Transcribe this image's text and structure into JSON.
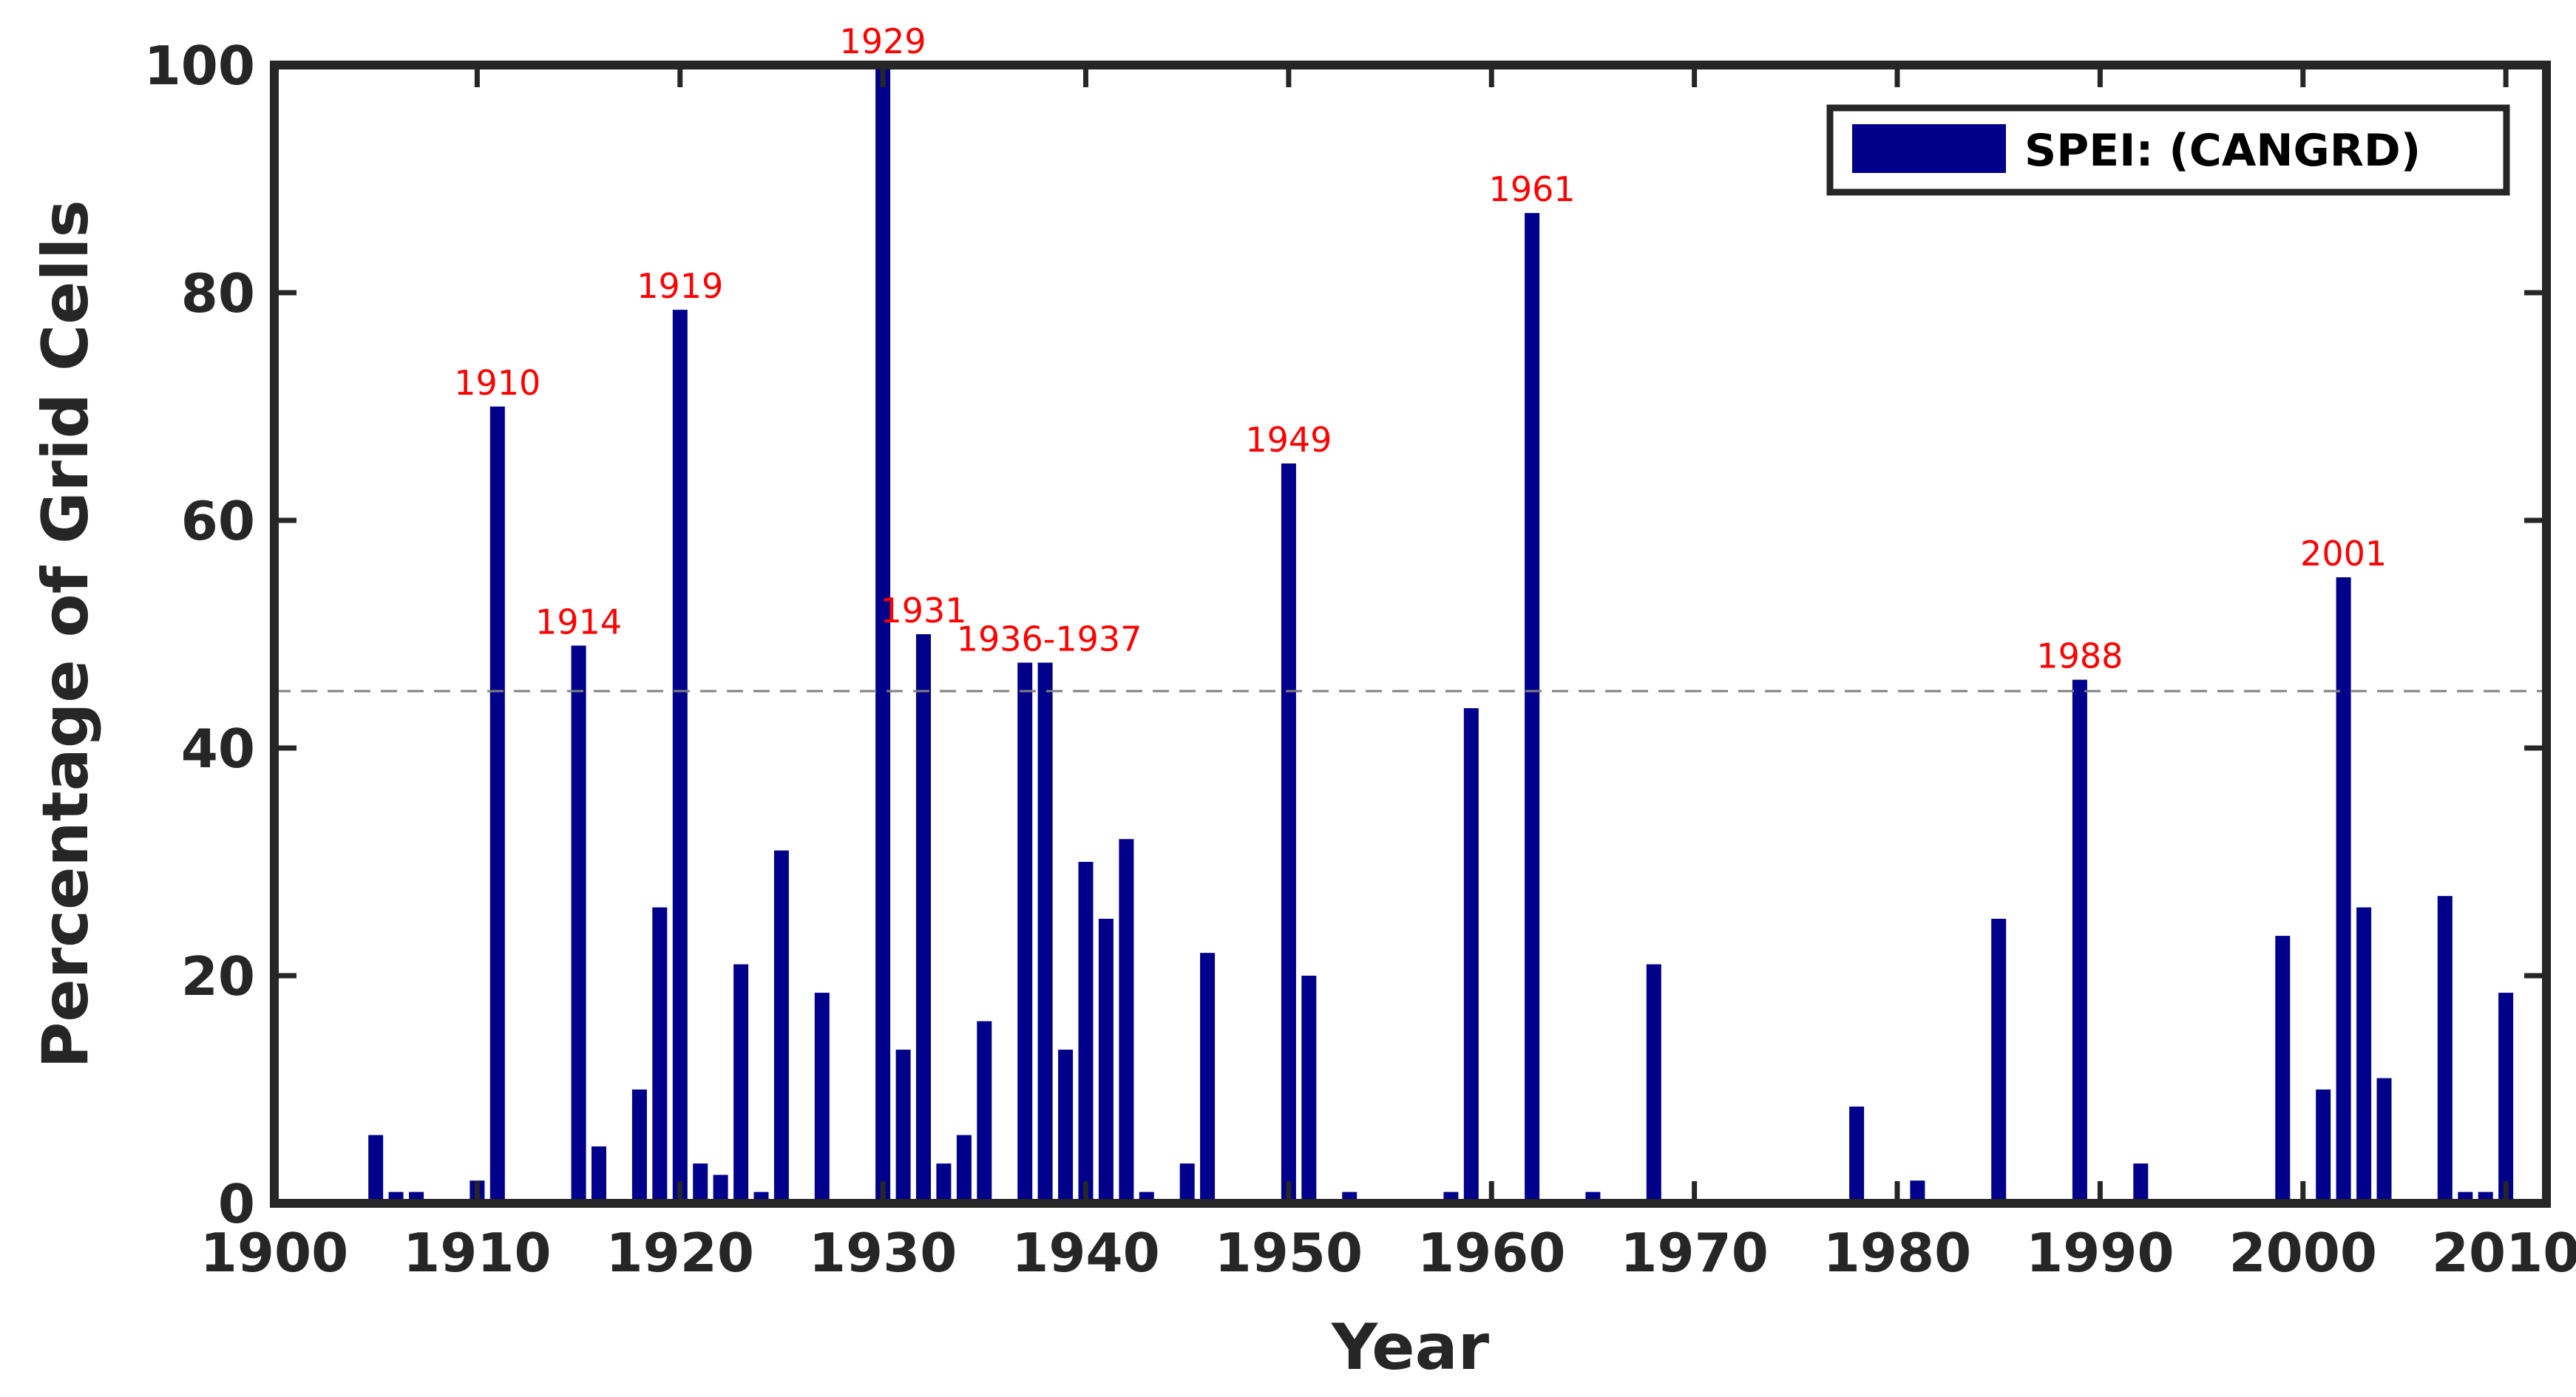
{
  "chart_data": {
    "type": "bar",
    "xlabel": "Year",
    "ylabel": "Percentage of Grid Cells",
    "xlim": [
      1900,
      2012
    ],
    "ylim": [
      0,
      100
    ],
    "xticks": [
      1900,
      1910,
      1920,
      1930,
      1940,
      1950,
      1960,
      1970,
      1980,
      1990,
      2000,
      2010
    ],
    "yticks": [
      0,
      20,
      40,
      60,
      80,
      100
    ],
    "threshold": 45,
    "grid": false,
    "legend": {
      "position": "top-right",
      "entries": [
        "SPEI: (CANGRD)"
      ]
    },
    "colors": {
      "bar": "#00008b",
      "annotation": "#ff0000",
      "threshold": "#808080",
      "axis": "#262626"
    },
    "series": [
      {
        "name": "SPEI: (CANGRD)",
        "x": [
          1905,
          1906,
          1907,
          1910,
          1911,
          1915,
          1916,
          1918,
          1919,
          1920,
          1921,
          1922,
          1923,
          1924,
          1925,
          1927,
          1930,
          1931,
          1932,
          1933,
          1934,
          1935,
          1937,
          1938,
          1939,
          1940,
          1941,
          1942,
          1943,
          1945,
          1946,
          1950,
          1951,
          1953,
          1958,
          1959,
          1962,
          1965,
          1968,
          1978,
          1981,
          1985,
          1989,
          1992,
          1999,
          2001,
          2002,
          2003,
          2004,
          2007,
          2008,
          2009,
          2010
        ],
        "values": [
          6,
          1,
          1,
          2,
          70,
          49,
          5,
          10,
          26,
          78.5,
          3.5,
          2.5,
          21,
          1,
          31,
          18.5,
          100,
          13.5,
          50,
          3.5,
          6,
          16,
          47.5,
          47.5,
          13.5,
          30,
          25,
          32,
          1,
          3.5,
          22,
          65,
          20,
          1,
          1,
          43.5,
          87,
          1,
          21,
          8.5,
          2,
          25,
          46,
          3.5,
          23.5,
          10,
          55,
          26,
          11,
          27,
          1,
          1,
          18.5
        ]
      }
    ],
    "annotations": [
      {
        "text": "1910",
        "x": 1911,
        "y": 70
      },
      {
        "text": "1914",
        "x": 1915,
        "y": 49
      },
      {
        "text": "1919",
        "x": 1920,
        "y": 78.5
      },
      {
        "text": "1929",
        "x": 1930,
        "y": 100
      },
      {
        "text": "1931",
        "x": 1932,
        "y": 50
      },
      {
        "text": "1936-1937",
        "x": 1938.2,
        "y": 47.5
      },
      {
        "text": "1949",
        "x": 1950,
        "y": 65
      },
      {
        "text": "1961",
        "x": 1962,
        "y": 87
      },
      {
        "text": "1988",
        "x": 1989,
        "y": 46
      },
      {
        "text": "2001",
        "x": 2002,
        "y": 55
      }
    ]
  }
}
